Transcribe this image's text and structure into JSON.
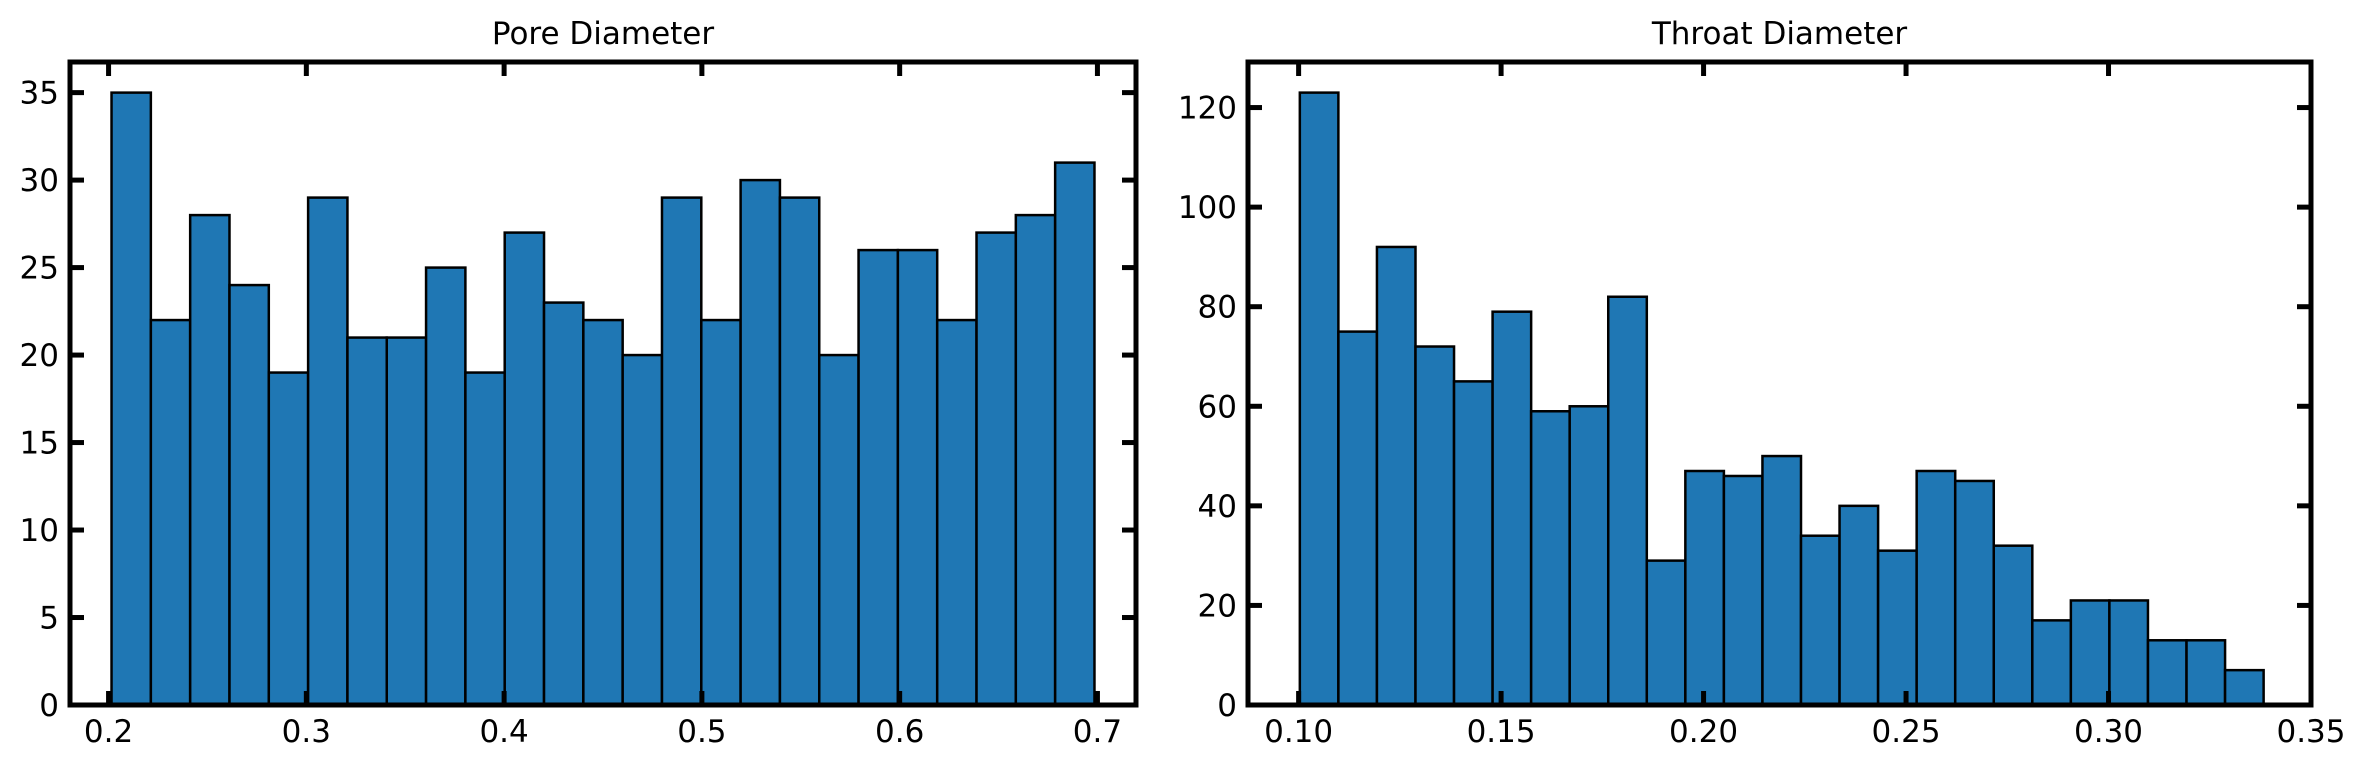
{
  "chart_data": [
    {
      "type": "bar",
      "title": "Pore Diameter",
      "xlabel": "",
      "ylabel": "",
      "xlim": [
        0.1805,
        0.7195
      ],
      "ylim": [
        0,
        36.75
      ],
      "xticks": [
        0.2,
        0.3,
        0.4,
        0.5,
        0.6,
        0.7
      ],
      "xtick_labels": [
        "0.2",
        "0.3",
        "0.4",
        "0.5",
        "0.6",
        "0.7"
      ],
      "yticks": [
        0,
        5,
        10,
        15,
        20,
        25,
        30,
        35
      ],
      "ytick_labels": [
        "0",
        "5",
        "10",
        "15",
        "20",
        "25",
        "30",
        "35"
      ],
      "bin_start": 0.2015,
      "bin_width": 0.01988,
      "values": [
        35,
        22,
        28,
        24,
        19,
        29,
        21,
        21,
        25,
        19,
        27,
        23,
        22,
        20,
        29,
        22,
        30,
        29,
        20,
        26,
        26,
        22,
        27,
        28,
        31
      ],
      "grid": false,
      "color": "#1f77b4",
      "edge_color": "#000000"
    },
    {
      "type": "bar",
      "title": "Throat Diameter",
      "xlabel": "",
      "ylabel": "",
      "xlim": [
        0.0875,
        0.35
      ],
      "ylim": [
        0,
        129.15
      ],
      "xticks": [
        0.1,
        0.15,
        0.2,
        0.25,
        0.3,
        0.35
      ],
      "xtick_labels": [
        "0.10",
        "0.15",
        "0.20",
        "0.25",
        "0.30",
        "0.35"
      ],
      "yticks": [
        0,
        20,
        40,
        60,
        80,
        100,
        120
      ],
      "ytick_labels": [
        "0",
        "20",
        "40",
        "60",
        "80",
        "100",
        "120"
      ],
      "bin_start": 0.1003,
      "bin_width": 0.00952,
      "values": [
        123,
        75,
        92,
        72,
        65,
        79,
        59,
        60,
        82,
        29,
        47,
        46,
        50,
        34,
        40,
        31,
        47,
        45,
        32,
        17,
        21,
        21,
        13,
        13,
        7
      ],
      "grid": false,
      "color": "#1f77b4",
      "edge_color": "#000000"
    }
  ]
}
